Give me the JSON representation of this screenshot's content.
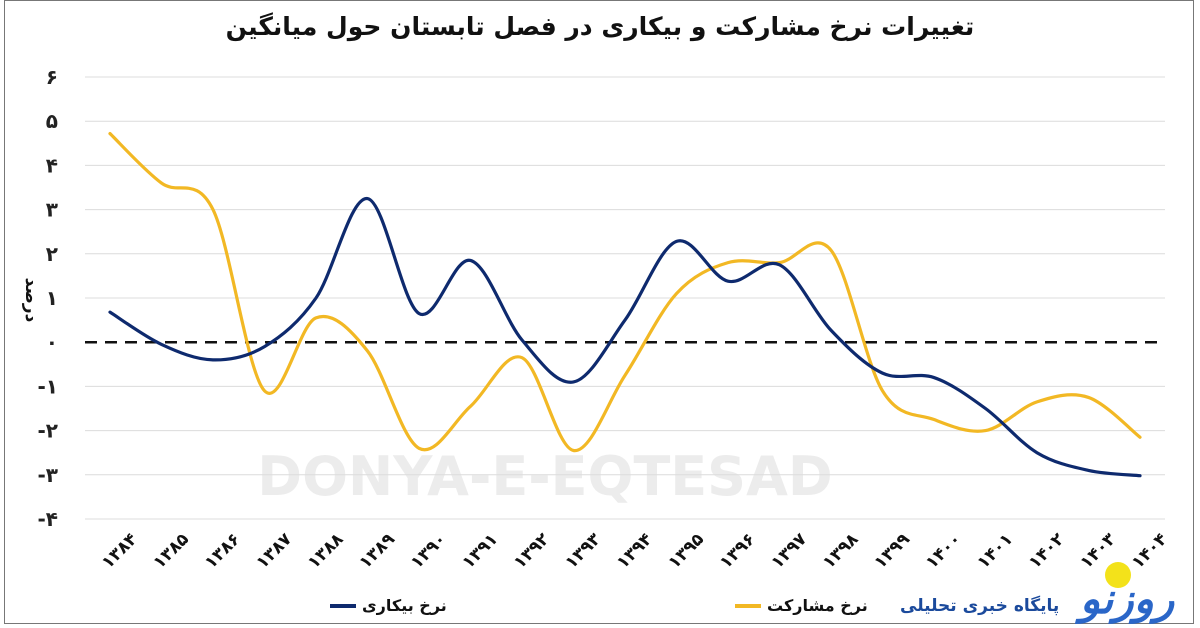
{
  "title": "تغییرات نرخ مشارکت و بیکاری در فصل تابستان حول میانگین",
  "watermark": "DONYA-E-EQTESAD",
  "logo": {
    "text": "پایگاه خبری تحلیلی",
    "mark": "روزنو"
  },
  "chart_data": {
    "type": "line",
    "title": "تغییرات نرخ مشارکت و بیکاری در فصل تابستان حول میانگین",
    "xlabel": "",
    "ylabel": "درصد",
    "ylim": [
      -4,
      6
    ],
    "yticks": [
      6,
      5,
      4,
      3,
      2,
      1,
      0,
      -1,
      -2,
      -3,
      -4
    ],
    "ytick_labels": [
      "۶",
      "۵",
      "۴",
      "۳",
      "۲",
      "۱",
      "۰",
      "-۱",
      "-۲",
      "-۳",
      "-۴"
    ],
    "categories": [
      "۱۳۸۴",
      "۱۳۸۵",
      "۱۳۸۶",
      "۱۳۸۷",
      "۱۳۸۸",
      "۱۳۸۹",
      "۱۳۹۰",
      "۱۳۹۱",
      "۱۳۹۲",
      "۱۳۹۳",
      "۱۳۹۴",
      "۱۳۹۵",
      "۱۳۹۶",
      "۱۳۹۷",
      "۱۳۹۸",
      "۱۳۹۹",
      "۱۴۰۰",
      "۱۴۰۱",
      "۱۴۰۲",
      "۱۴۰۳",
      "۱۴۰۴"
    ],
    "grid": true,
    "zero_line": "dashed",
    "legend_placement": "bottom",
    "series": [
      {
        "name": "نرخ بیکاری",
        "color": "#0e2a6e",
        "values": [
          0.68,
          -0.05,
          -0.4,
          -0.1,
          1.0,
          3.25,
          0.65,
          1.85,
          0.05,
          -0.9,
          0.5,
          2.28,
          1.38,
          1.75,
          0.27,
          -0.7,
          -0.8,
          -1.5,
          -2.5,
          -2.9,
          -3.02
        ]
      },
      {
        "name": "نرخ مشارکت",
        "color": "#f2b824",
        "values": [
          4.72,
          3.6,
          3.0,
          -1.1,
          0.55,
          -0.2,
          -2.4,
          -1.45,
          -0.35,
          -2.45,
          -0.75,
          1.1,
          1.8,
          1.8,
          2.08,
          -1.1,
          -1.75,
          -2.0,
          -1.35,
          -1.25,
          -2.15
        ]
      }
    ]
  }
}
